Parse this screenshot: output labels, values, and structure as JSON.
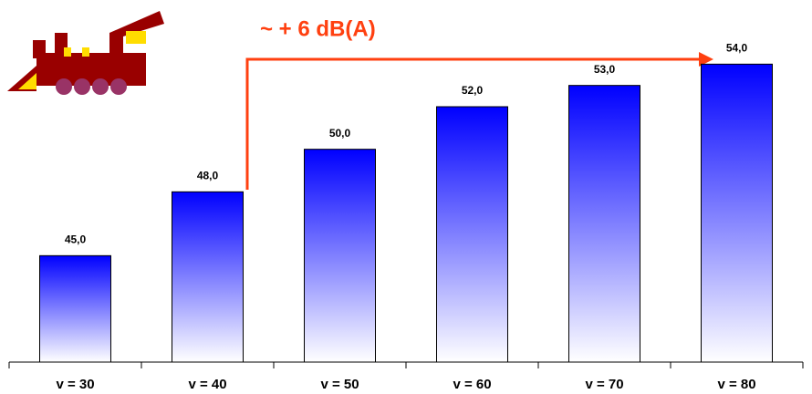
{
  "chart_data": {
    "type": "bar",
    "annotation": "~ + 6 dB(A)",
    "categories": [
      "v = 30",
      "v = 40",
      "v = 50",
      "v = 60",
      "v = 70",
      "v = 80"
    ],
    "values": [
      45,
      48,
      50,
      52,
      53,
      54
    ],
    "value_labels": [
      "45,0",
      "48,0",
      "50,0",
      "52,0",
      "53,0",
      "54,0"
    ],
    "color": "#0000ff",
    "ylim": [
      40,
      55
    ]
  }
}
